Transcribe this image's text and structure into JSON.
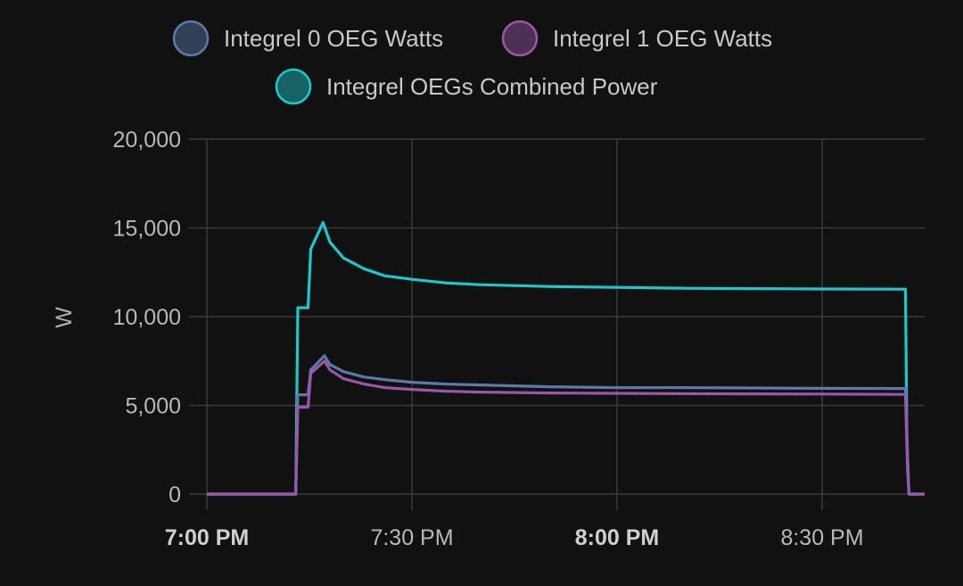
{
  "chart_data": {
    "type": "line",
    "title": "",
    "xlabel": "",
    "ylabel": "W",
    "ylim": [
      0,
      20000
    ],
    "xlim": [
      "7:00 PM",
      "8:53 PM"
    ],
    "grid": true,
    "legend_position": "top",
    "y_ticks": [
      "20,000",
      "15,000",
      "10,000",
      "5,000",
      "0"
    ],
    "y_tick_values": [
      20000,
      15000,
      10000,
      5000,
      0
    ],
    "x_ticks": [
      {
        "label": "7:00 PM",
        "bold": true,
        "minute": 0
      },
      {
        "label": "7:30 PM",
        "bold": false,
        "minute": 30
      },
      {
        "label": "8:00 PM",
        "bold": true,
        "minute": 60
      },
      {
        "label": "8:30 PM",
        "bold": false,
        "minute": 90
      }
    ],
    "series": [
      {
        "name": "Integrel 0 OEG Watts",
        "color": "#5b7aa8",
        "x": [
          0,
          13,
          13.3,
          13.7,
          14.8,
          15.2,
          17.2,
          18,
          20,
          23,
          26,
          30,
          35,
          40,
          50,
          60,
          70,
          80,
          90,
          102.2,
          102.5,
          102.7,
          105
        ],
        "y": [
          0,
          0,
          5600,
          5600,
          5600,
          7000,
          7800,
          7300,
          6900,
          6600,
          6450,
          6300,
          6200,
          6150,
          6050,
          6000,
          6000,
          5980,
          5960,
          5950,
          2200,
          0,
          0
        ]
      },
      {
        "name": "Integrel 1 OEG Watts",
        "color": "#9a56a8",
        "x": [
          0,
          13,
          13.3,
          13.7,
          14.8,
          15.2,
          17.2,
          18,
          20,
          23,
          26,
          30,
          35,
          40,
          50,
          60,
          70,
          80,
          90,
          102.2,
          102.5,
          102.7,
          105
        ],
        "y": [
          0,
          0,
          4900,
          4900,
          4900,
          6800,
          7500,
          7000,
          6500,
          6200,
          6000,
          5900,
          5800,
          5750,
          5700,
          5680,
          5660,
          5650,
          5640,
          5620,
          1300,
          0,
          0
        ]
      },
      {
        "name": "Integrel OEGs Combined Power",
        "color": "#1cc8cc",
        "x": [
          0,
          13,
          13.3,
          13.7,
          14.8,
          15.2,
          17,
          18,
          20,
          23,
          26,
          30,
          35,
          40,
          50,
          60,
          70,
          80,
          90,
          102.2,
          102.4,
          102.7,
          105
        ],
        "y": [
          0,
          0,
          10500,
          10500,
          10500,
          13800,
          15300,
          14200,
          13300,
          12700,
          12300,
          12100,
          11900,
          11800,
          11700,
          11650,
          11600,
          11580,
          11560,
          11550,
          3000,
          0,
          0
        ]
      }
    ]
  }
}
